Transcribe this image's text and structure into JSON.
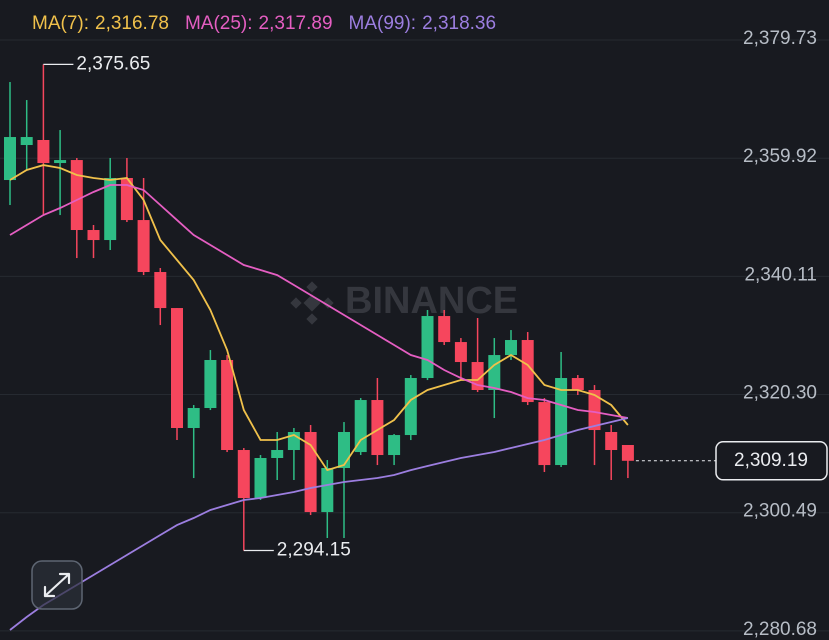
{
  "chart_data": {
    "type": "candlestick",
    "watermark": "BINANCE",
    "up_color": "#2ebd85",
    "down_color": "#f6465d",
    "grid": true,
    "ylim": [
      2279.15,
      2386.44
    ],
    "yticks": [
      {
        "value": 2379.73,
        "label": "2,379.73"
      },
      {
        "value": 2359.92,
        "label": "2,359.92"
      },
      {
        "value": 2340.11,
        "label": "2,340.11"
      },
      {
        "value": 2320.3,
        "label": "2,320.30"
      },
      {
        "value": 2300.49,
        "label": "2,300.49"
      },
      {
        "value": 2280.68,
        "label": "2,280.68"
      }
    ],
    "candles": {
      "open": [
        2356.26,
        2362.13,
        2362.97,
        2359.11,
        2359.61,
        2347.88,
        2346.2,
        2356.6,
        2349.55,
        2340.84,
        2334.8,
        2314.69,
        2318.04,
        2326.09,
        2311.0,
        2302.95,
        2309.66,
        2311.0,
        2314.02,
        2300.6,
        2307.98,
        2310.66,
        2319.38,
        2310.16,
        2313.51,
        2323.07,
        2333.46,
        2329.1,
        2325.75,
        2321.06,
        2326.92,
        2329.44,
        2319.04,
        2308.48,
        2323.07,
        2321.06,
        2314.02,
        2311.84
      ],
      "high": [
        2372.69,
        2369.67,
        2375.65,
        2364.64,
        2359.95,
        2348.72,
        2359.95,
        2359.95,
        2356.6,
        2341.51,
        2334.8,
        2318.54,
        2327.76,
        2326.92,
        2311.33,
        2310.16,
        2314.02,
        2314.69,
        2315.19,
        2309.32,
        2315.69,
        2319.71,
        2323.07,
        2313.68,
        2323.57,
        2334.47,
        2334.47,
        2329.77,
        2333.13,
        2329.77,
        2331.11,
        2330.78,
        2319.71,
        2327.43,
        2323.57,
        2321.89,
        2315.19,
        2311.84
      ],
      "low": [
        2352.07,
        2357.94,
        2350.39,
        2350.39,
        2343.18,
        2343.18,
        2344.53,
        2349.22,
        2340.33,
        2331.95,
        2312.67,
        2306.3,
        2317.7,
        2310.66,
        2294.15,
        2302.62,
        2305.97,
        2305.97,
        2300.1,
        2296.25,
        2296.25,
        2310.16,
        2308.48,
        2308.48,
        2312.67,
        2322.73,
        2328.6,
        2322.73,
        2320.72,
        2316.36,
        2326.09,
        2318.54,
        2307.31,
        2308.15,
        2320.22,
        2308.48,
        2305.97,
        2306.3
      ],
      "close": [
        2363.47,
        2363.47,
        2359.11,
        2359.61,
        2347.88,
        2346.2,
        2356.6,
        2349.55,
        2340.84,
        2334.8,
        2314.69,
        2318.04,
        2326.09,
        2311.0,
        2302.95,
        2309.66,
        2311.0,
        2314.02,
        2300.6,
        2307.98,
        2314.02,
        2319.38,
        2310.16,
        2313.51,
        2323.07,
        2333.46,
        2329.1,
        2325.75,
        2321.06,
        2326.92,
        2329.44,
        2319.04,
        2308.48,
        2323.07,
        2321.06,
        2314.35,
        2311.0,
        2309.19
      ]
    },
    "series": [
      {
        "name": "MA(7):",
        "color": "#f0c14b",
        "legend_value": 2316.78,
        "legend_label": "2,316.78",
        "values": [
          2356.26,
          2357.94,
          2358.77,
          2358.27,
          2357.1,
          2356.6,
          2356.26,
          2356.6,
          2352.91,
          2346.2,
          2342.85,
          2339.5,
          2334.47,
          2327.76,
          2317.7,
          2312.67,
          2312.67,
          2313.51,
          2311.84,
          2307.64,
          2308.48,
          2312.67,
          2314.35,
          2316.03,
          2319.38,
          2321.06,
          2321.89,
          2322.73,
          2322.73,
          2325.25,
          2326.92,
          2325.25,
          2321.89,
          2321.06,
          2321.06,
          2320.22,
          2318.54,
          2315.19
        ]
      },
      {
        "name": "MA(25):",
        "color": "#e55ec2",
        "legend_value": 2317.89,
        "legend_label": "2,317.89",
        "values": [
          2347.04,
          2348.72,
          2350.39,
          2351.57,
          2352.91,
          2354.25,
          2355.42,
          2355.42,
          2354.58,
          2352.07,
          2349.55,
          2347.04,
          2345.36,
          2343.69,
          2342.01,
          2341.17,
          2340.33,
          2338.66,
          2336.98,
          2335.31,
          2333.63,
          2331.95,
          2330.28,
          2328.6,
          2326.92,
          2326.09,
          2324.41,
          2323.07,
          2321.89,
          2321.39,
          2320.72,
          2319.71,
          2319.38,
          2318.54,
          2317.7,
          2317.37,
          2316.87,
          2316.36
        ]
      },
      {
        "name": "MA(99):",
        "color": "#9c7ee0",
        "legend_value": 2318.36,
        "legend_label": "2,318.36",
        "values": [
          2280.82,
          2283.0,
          2285.01,
          2286.69,
          2288.37,
          2290.04,
          2291.72,
          2293.4,
          2295.07,
          2296.75,
          2298.42,
          2299.6,
          2300.94,
          2301.78,
          2302.62,
          2302.95,
          2303.45,
          2303.96,
          2304.63,
          2305.13,
          2305.63,
          2305.97,
          2306.3,
          2306.81,
          2307.64,
          2308.32,
          2308.99,
          2309.66,
          2310.16,
          2310.66,
          2311.33,
          2312.0,
          2312.67,
          2313.51,
          2314.35,
          2315.02,
          2315.69,
          2316.36
        ]
      }
    ],
    "current_price": {
      "value": 2309.19,
      "label": "2,309.19"
    },
    "max_label": {
      "value": 2375.65,
      "label": "2,375.65"
    },
    "min_label": {
      "value": 2294.15,
      "label": "2,294.15"
    }
  }
}
